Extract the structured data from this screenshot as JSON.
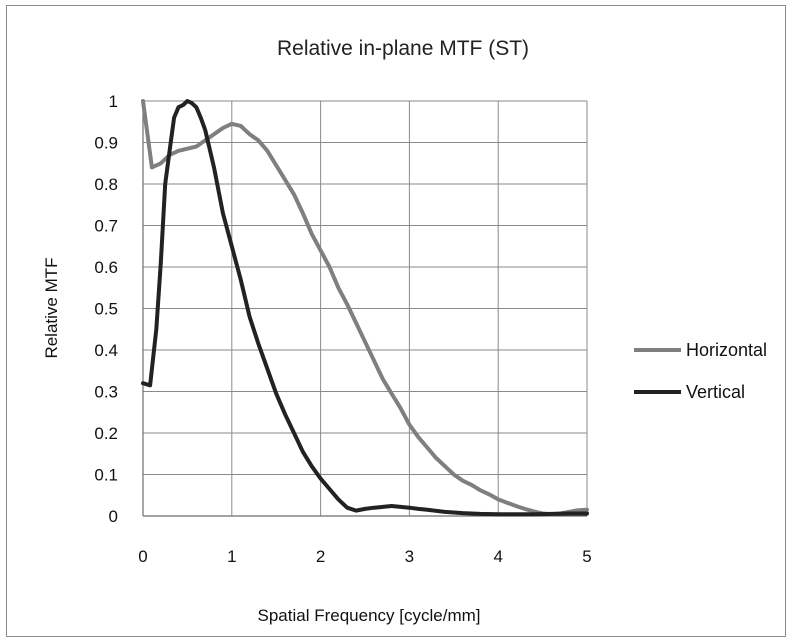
{
  "chart_data": {
    "type": "line",
    "title": "Relative in-plane MTF (ST)",
    "xlabel": "Spatial Frequency [cycle/mm]",
    "ylabel": "Relative MTF",
    "xlim": [
      0,
      5
    ],
    "ylim": [
      0,
      1
    ],
    "x_ticks": [
      0,
      1,
      2,
      3,
      4,
      5
    ],
    "y_ticks": [
      0,
      0.1,
      0.2,
      0.3,
      0.4,
      0.5,
      0.6,
      0.7,
      0.8,
      0.9,
      1
    ],
    "x_tick_labels": [
      "0",
      "1",
      "2",
      "3",
      "4",
      "5"
    ],
    "y_tick_labels": [
      "0",
      "0.1",
      "0.2",
      "0.3",
      "0.4",
      "0.5",
      "0.6",
      "0.7",
      "0.8",
      "0.9",
      "1"
    ],
    "grid": "on",
    "legend_position": "right",
    "series": [
      {
        "name": "Horizontal",
        "color": "#7f7f7f",
        "x": [
          0,
          0.1,
          0.2,
          0.3,
          0.4,
          0.5,
          0.6,
          0.7,
          0.8,
          0.9,
          1.0,
          1.1,
          1.2,
          1.3,
          1.4,
          1.5,
          1.6,
          1.7,
          1.8,
          1.9,
          2.0,
          2.1,
          2.2,
          2.3,
          2.4,
          2.5,
          2.6,
          2.7,
          2.8,
          2.9,
          3.0,
          3.1,
          3.2,
          3.3,
          3.4,
          3.5,
          3.6,
          3.7,
          3.8,
          3.9,
          4.0,
          4.1,
          4.2,
          4.3,
          4.4,
          4.5,
          4.6,
          4.7,
          4.8,
          4.9,
          5.0
        ],
        "y": [
          1.0,
          0.84,
          0.85,
          0.87,
          0.88,
          0.885,
          0.89,
          0.905,
          0.92,
          0.935,
          0.945,
          0.94,
          0.92,
          0.905,
          0.88,
          0.845,
          0.81,
          0.775,
          0.73,
          0.68,
          0.64,
          0.6,
          0.55,
          0.51,
          0.465,
          0.42,
          0.375,
          0.33,
          0.295,
          0.26,
          0.22,
          0.19,
          0.165,
          0.14,
          0.12,
          0.1,
          0.085,
          0.075,
          0.062,
          0.052,
          0.04,
          0.032,
          0.024,
          0.017,
          0.011,
          0.006,
          0.004,
          0.006,
          0.01,
          0.014,
          0.015
        ]
      },
      {
        "name": "Vertical",
        "color": "#222222",
        "x": [
          0,
          0.08,
          0.15,
          0.2,
          0.25,
          0.3,
          0.35,
          0.4,
          0.45,
          0.5,
          0.55,
          0.6,
          0.65,
          0.7,
          0.8,
          0.9,
          1.0,
          1.1,
          1.2,
          1.3,
          1.4,
          1.5,
          1.6,
          1.7,
          1.8,
          1.9,
          2.0,
          2.1,
          2.2,
          2.3,
          2.4,
          2.5,
          2.6,
          2.7,
          2.8,
          2.9,
          3.0,
          3.1,
          3.2,
          3.4,
          3.6,
          3.8,
          4.0,
          4.2,
          4.4,
          4.6,
          4.8,
          5.0
        ],
        "y": [
          0.32,
          0.315,
          0.45,
          0.61,
          0.8,
          0.88,
          0.96,
          0.985,
          0.99,
          1.0,
          0.995,
          0.985,
          0.96,
          0.93,
          0.84,
          0.73,
          0.65,
          0.57,
          0.48,
          0.415,
          0.355,
          0.295,
          0.245,
          0.2,
          0.155,
          0.12,
          0.09,
          0.065,
          0.04,
          0.02,
          0.013,
          0.017,
          0.02,
          0.022,
          0.024,
          0.022,
          0.02,
          0.017,
          0.015,
          0.01,
          0.007,
          0.005,
          0.004,
          0.004,
          0.004,
          0.005,
          0.006,
          0.006
        ]
      }
    ]
  }
}
